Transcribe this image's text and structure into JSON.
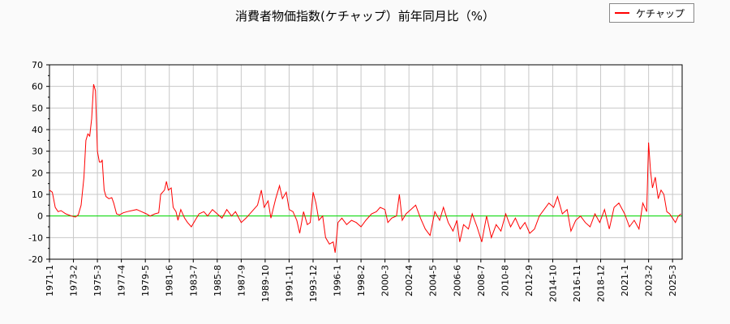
{
  "chart_data": {
    "type": "line",
    "title": "消費者物価指数(ケチャップ）前年同月比（%）",
    "xlabel": "",
    "ylabel": "",
    "ylim": [
      -20,
      70
    ],
    "yticks": [
      -20,
      -10,
      0,
      10,
      20,
      30,
      40,
      50,
      60,
      70
    ],
    "xticks": [
      "1971-1",
      "1973-2",
      "1975-3",
      "1977-4",
      "1979-5",
      "1981-6",
      "1983-7",
      "1985-8",
      "1987-9",
      "1989-10",
      "1991-11",
      "1993-12",
      "1996-1",
      "1998-2",
      "2000-3",
      "2002-4",
      "2004-5",
      "2006-6",
      "2008-7",
      "2010-8",
      "2012-9",
      "2014-10",
      "2016-11",
      "2018-12",
      "2021-1",
      "2023-2",
      "2025-3"
    ],
    "xlim": [
      "1971-1",
      "2026-1"
    ],
    "grid": true,
    "legend_position": "top-right",
    "colors": {
      "line": "#ff0000",
      "zero_line": "#00dd00",
      "grid": "#c8c8c8"
    },
    "series": [
      {
        "name": "ケチャップ",
        "points": [
          [
            "1971-1",
            12
          ],
          [
            "1971-4",
            11
          ],
          [
            "1971-7",
            4
          ],
          [
            "1971-10",
            2
          ],
          [
            "1972-1",
            2.5
          ],
          [
            "1972-6",
            1
          ],
          [
            "1972-12",
            0
          ],
          [
            "1973-4",
            -0.5
          ],
          [
            "1973-7",
            0.5
          ],
          [
            "1973-10",
            5
          ],
          [
            "1974-1",
            18
          ],
          [
            "1974-3",
            35
          ],
          [
            "1974-5",
            38
          ],
          [
            "1974-7",
            37
          ],
          [
            "1974-9",
            45
          ],
          [
            "1974-11",
            61
          ],
          [
            "1975-1",
            58
          ],
          [
            "1975-3",
            30
          ],
          [
            "1975-5",
            25
          ],
          [
            "1975-7",
            25
          ],
          [
            "1975-8",
            26
          ],
          [
            "1975-10",
            12
          ],
          [
            "1975-12",
            9
          ],
          [
            "1976-3",
            8
          ],
          [
            "1976-6",
            8.5
          ],
          [
            "1976-8",
            6
          ],
          [
            "1976-11",
            1
          ],
          [
            "1977-2",
            0.5
          ],
          [
            "1977-6",
            1.5
          ],
          [
            "1977-10",
            2
          ],
          [
            "1978-3",
            2.5
          ],
          [
            "1978-8",
            3
          ],
          [
            "1979-1",
            2
          ],
          [
            "1979-6",
            1
          ],
          [
            "1979-10",
            0
          ],
          [
            "1980-3",
            1
          ],
          [
            "1980-7",
            1.5
          ],
          [
            "1980-9",
            10
          ],
          [
            "1981-1",
            12
          ],
          [
            "1981-3",
            16
          ],
          [
            "1981-5",
            12
          ],
          [
            "1981-8",
            13
          ],
          [
            "1981-10",
            4
          ],
          [
            "1982-1",
            2
          ],
          [
            "1982-3",
            -2
          ],
          [
            "1982-6",
            3
          ],
          [
            "1982-10",
            -1
          ],
          [
            "1983-1",
            -3
          ],
          [
            "1983-5",
            -5
          ],
          [
            "1983-9",
            -2
          ],
          [
            "1984-1",
            1
          ],
          [
            "1984-6",
            2
          ],
          [
            "1984-10",
            0
          ],
          [
            "1985-3",
            3
          ],
          [
            "1985-8",
            1
          ],
          [
            "1986-1",
            -1
          ],
          [
            "1986-6",
            3
          ],
          [
            "1986-11",
            0
          ],
          [
            "1987-3",
            2
          ],
          [
            "1987-9",
            -3
          ],
          [
            "1988-2",
            -1
          ],
          [
            "1988-8",
            2
          ],
          [
            "1989-2",
            5
          ],
          [
            "1989-6",
            12
          ],
          [
            "1989-9",
            4
          ],
          [
            "1990-1",
            7
          ],
          [
            "1990-4",
            -1
          ],
          [
            "1990-9",
            8
          ],
          [
            "1991-1",
            14
          ],
          [
            "1991-4",
            8
          ],
          [
            "1991-8",
            11
          ],
          [
            "1991-11",
            3
          ],
          [
            "1992-3",
            2
          ],
          [
            "1992-7",
            -2
          ],
          [
            "1992-10",
            -8
          ],
          [
            "1993-2",
            2
          ],
          [
            "1993-6",
            -4
          ],
          [
            "1993-9",
            -3
          ],
          [
            "1993-12",
            11
          ],
          [
            "1994-3",
            6
          ],
          [
            "1994-6",
            -2
          ],
          [
            "1994-10",
            0
          ],
          [
            "1995-1",
            -10
          ],
          [
            "1995-5",
            -13
          ],
          [
            "1995-9",
            -12
          ],
          [
            "1995-11",
            -17
          ],
          [
            "1996-2",
            -3
          ],
          [
            "1996-6",
            -1
          ],
          [
            "1996-11",
            -4
          ],
          [
            "1997-4",
            -2
          ],
          [
            "1997-9",
            -3
          ],
          [
            "1998-2",
            -5
          ],
          [
            "1998-7",
            -2
          ],
          [
            "1999-1",
            1
          ],
          [
            "1999-6",
            2
          ],
          [
            "1999-10",
            4
          ],
          [
            "2000-3",
            3
          ],
          [
            "2000-6",
            -3
          ],
          [
            "2000-10",
            -1
          ],
          [
            "2001-3",
            0
          ],
          [
            "2001-6",
            10
          ],
          [
            "2001-9",
            -2
          ],
          [
            "2002-1",
            1
          ],
          [
            "2002-6",
            3
          ],
          [
            "2002-11",
            5
          ],
          [
            "2003-4",
            -1
          ],
          [
            "2003-9",
            -6
          ],
          [
            "2004-2",
            -9
          ],
          [
            "2004-7",
            2
          ],
          [
            "2004-12",
            -2
          ],
          [
            "2005-4",
            4
          ],
          [
            "2005-9",
            -3
          ],
          [
            "2006-2",
            -7
          ],
          [
            "2006-6",
            -2
          ],
          [
            "2006-9",
            -12
          ],
          [
            "2007-1",
            -4
          ],
          [
            "2007-6",
            -6
          ],
          [
            "2007-10",
            1
          ],
          [
            "2008-3",
            -5
          ],
          [
            "2008-8",
            -12
          ],
          [
            "2009-1",
            0
          ],
          [
            "2009-6",
            -10
          ],
          [
            "2009-11",
            -4
          ],
          [
            "2010-4",
            -7
          ],
          [
            "2010-9",
            1
          ],
          [
            "2011-2",
            -5
          ],
          [
            "2011-7",
            -1
          ],
          [
            "2011-12",
            -6
          ],
          [
            "2012-5",
            -3
          ],
          [
            "2012-10",
            -8
          ],
          [
            "2013-3",
            -6
          ],
          [
            "2013-8",
            0
          ],
          [
            "2014-1",
            3
          ],
          [
            "2014-6",
            6
          ],
          [
            "2014-11",
            4
          ],
          [
            "2015-3",
            9
          ],
          [
            "2015-8",
            1
          ],
          [
            "2016-1",
            3
          ],
          [
            "2016-5",
            -7
          ],
          [
            "2016-10",
            -2
          ],
          [
            "2017-3",
            0
          ],
          [
            "2017-8",
            -3
          ],
          [
            "2018-1",
            -5
          ],
          [
            "2018-6",
            1
          ],
          [
            "2018-11",
            -3
          ],
          [
            "2019-4",
            3
          ],
          [
            "2019-9",
            -6
          ],
          [
            "2020-2",
            4
          ],
          [
            "2020-7",
            6
          ],
          [
            "2021-1",
            1
          ],
          [
            "2021-6",
            -5
          ],
          [
            "2021-11",
            -2
          ],
          [
            "2022-4",
            -6
          ],
          [
            "2022-8",
            6
          ],
          [
            "2022-12",
            2
          ],
          [
            "2023-2",
            34
          ],
          [
            "2023-4",
            21
          ],
          [
            "2023-6",
            13
          ],
          [
            "2023-9",
            18
          ],
          [
            "2023-12",
            8
          ],
          [
            "2024-3",
            12
          ],
          [
            "2024-6",
            10
          ],
          [
            "2024-9",
            2
          ],
          [
            "2024-12",
            1
          ],
          [
            "2025-3",
            -1
          ],
          [
            "2025-6",
            -3
          ],
          [
            "2025-9",
            0
          ],
          [
            "2025-12",
            1
          ]
        ]
      }
    ]
  }
}
